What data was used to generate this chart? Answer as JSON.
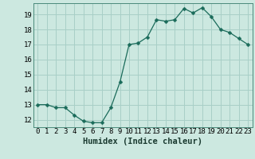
{
  "xlabel": "Humidex (Indice chaleur)",
  "ylabel": "",
  "x": [
    0,
    1,
    2,
    3,
    4,
    5,
    6,
    7,
    8,
    9,
    10,
    11,
    12,
    13,
    14,
    15,
    16,
    17,
    18,
    19,
    20,
    21,
    22,
    23
  ],
  "y": [
    13.0,
    13.0,
    12.8,
    12.8,
    12.3,
    11.9,
    11.8,
    11.8,
    12.8,
    14.5,
    17.0,
    17.1,
    17.5,
    18.65,
    18.55,
    18.65,
    19.4,
    19.1,
    19.45,
    18.85,
    18.0,
    17.8,
    17.4,
    17.0
  ],
  "line_color": "#1a6b5a",
  "marker": "D",
  "marker_size": 2.5,
  "bg_color": "#cce8e0",
  "grid_color": "#a8cfc7",
  "ylim": [
    11.5,
    19.75
  ],
  "xlim": [
    -0.5,
    23.5
  ],
  "yticks": [
    12,
    13,
    14,
    15,
    16,
    17,
    18,
    19
  ],
  "xticks": [
    0,
    1,
    2,
    3,
    4,
    5,
    6,
    7,
    8,
    9,
    10,
    11,
    12,
    13,
    14,
    15,
    16,
    17,
    18,
    19,
    20,
    21,
    22,
    23
  ],
  "tick_label_fontsize": 6.5,
  "xlabel_fontsize": 7.5
}
